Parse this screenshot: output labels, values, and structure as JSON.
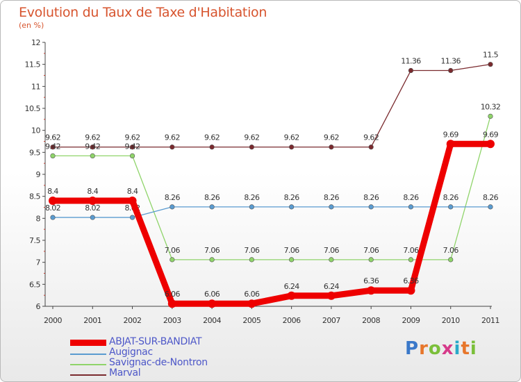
{
  "header": {
    "title": "Evolution du Taux de Taxe d'Habitation",
    "subtitle": "(en %)"
  },
  "logo": {
    "letters": [
      "P",
      "r",
      "o",
      "x",
      "i",
      "t",
      "i"
    ],
    "colors": [
      "#3a78c9",
      "#e7762b",
      "#7bbf3a",
      "#d63a8a",
      "#2aa9c9",
      "#e7762b",
      "#7bbf3a"
    ]
  },
  "chart_data": {
    "type": "line",
    "title": "Evolution du Taux de Taxe d'Habitation",
    "subtitle": "(en %)",
    "xlabel": "",
    "ylabel": "",
    "ylim": [
      6,
      12
    ],
    "y_ticks": [
      "6",
      "6.5",
      "7",
      "7.5",
      "8",
      "8.5",
      "9",
      "9.5",
      "10",
      "10.5",
      "11",
      "11.5",
      "12"
    ],
    "categories": [
      "2000",
      "2001",
      "2002",
      "2003",
      "2004",
      "2005",
      "2006",
      "2007",
      "2008",
      "2009",
      "2010",
      "2011"
    ],
    "series": [
      {
        "name": "Marval",
        "color": "#7a2a2e",
        "values": [
          9.62,
          9.62,
          9.62,
          9.62,
          9.62,
          9.62,
          9.62,
          9.62,
          9.62,
          11.36,
          11.36,
          11.5
        ],
        "labels": [
          "9.62",
          "9.62",
          "9.62",
          "9.62",
          "9.62",
          "9.62",
          "9.62",
          "9.62",
          "9.62",
          "11.36",
          "11.36",
          "11.5"
        ]
      },
      {
        "name": "Savignac-de-Nontron",
        "color": "#8fd46a",
        "values": [
          9.42,
          9.42,
          9.42,
          7.06,
          7.06,
          7.06,
          7.06,
          7.06,
          7.06,
          7.06,
          7.06,
          10.32
        ],
        "labels": [
          "9.42",
          "9.42",
          "9.42",
          "7.06",
          "7.06",
          "7.06",
          "7.06",
          "7.06",
          "7.06",
          "7.06",
          "7.06",
          "10.32"
        ]
      },
      {
        "name": "Augignac",
        "color": "#5a9bd0",
        "values": [
          8.02,
          8.02,
          8.02,
          8.26,
          8.26,
          8.26,
          8.26,
          8.26,
          8.26,
          8.26,
          8.26,
          8.26
        ],
        "labels": [
          "8.02",
          "8.02",
          "8.02",
          "8.26",
          "8.26",
          "8.26",
          "8.26",
          "8.26",
          "8.26",
          "8.26",
          "8.26",
          "8.26"
        ]
      },
      {
        "name": "ABJAT-SUR-BANDIAT",
        "color": "#ee0000",
        "values": [
          8.4,
          8.4,
          8.4,
          6.06,
          6.06,
          6.06,
          6.24,
          6.24,
          6.36,
          6.36,
          9.69,
          9.69
        ],
        "labels": [
          "8.4",
          "8.4",
          "8.4",
          "6.06",
          "6.06",
          "6.06",
          "6.24",
          "6.24",
          "6.36",
          "6.36",
          "9.69",
          "9.69"
        ]
      }
    ],
    "legend": [
      "ABJAT-SUR-BANDIAT",
      "Augignac",
      "Savignac-de-Nontron",
      "Marval"
    ],
    "legend_position": "bottom-left",
    "grid": false
  }
}
